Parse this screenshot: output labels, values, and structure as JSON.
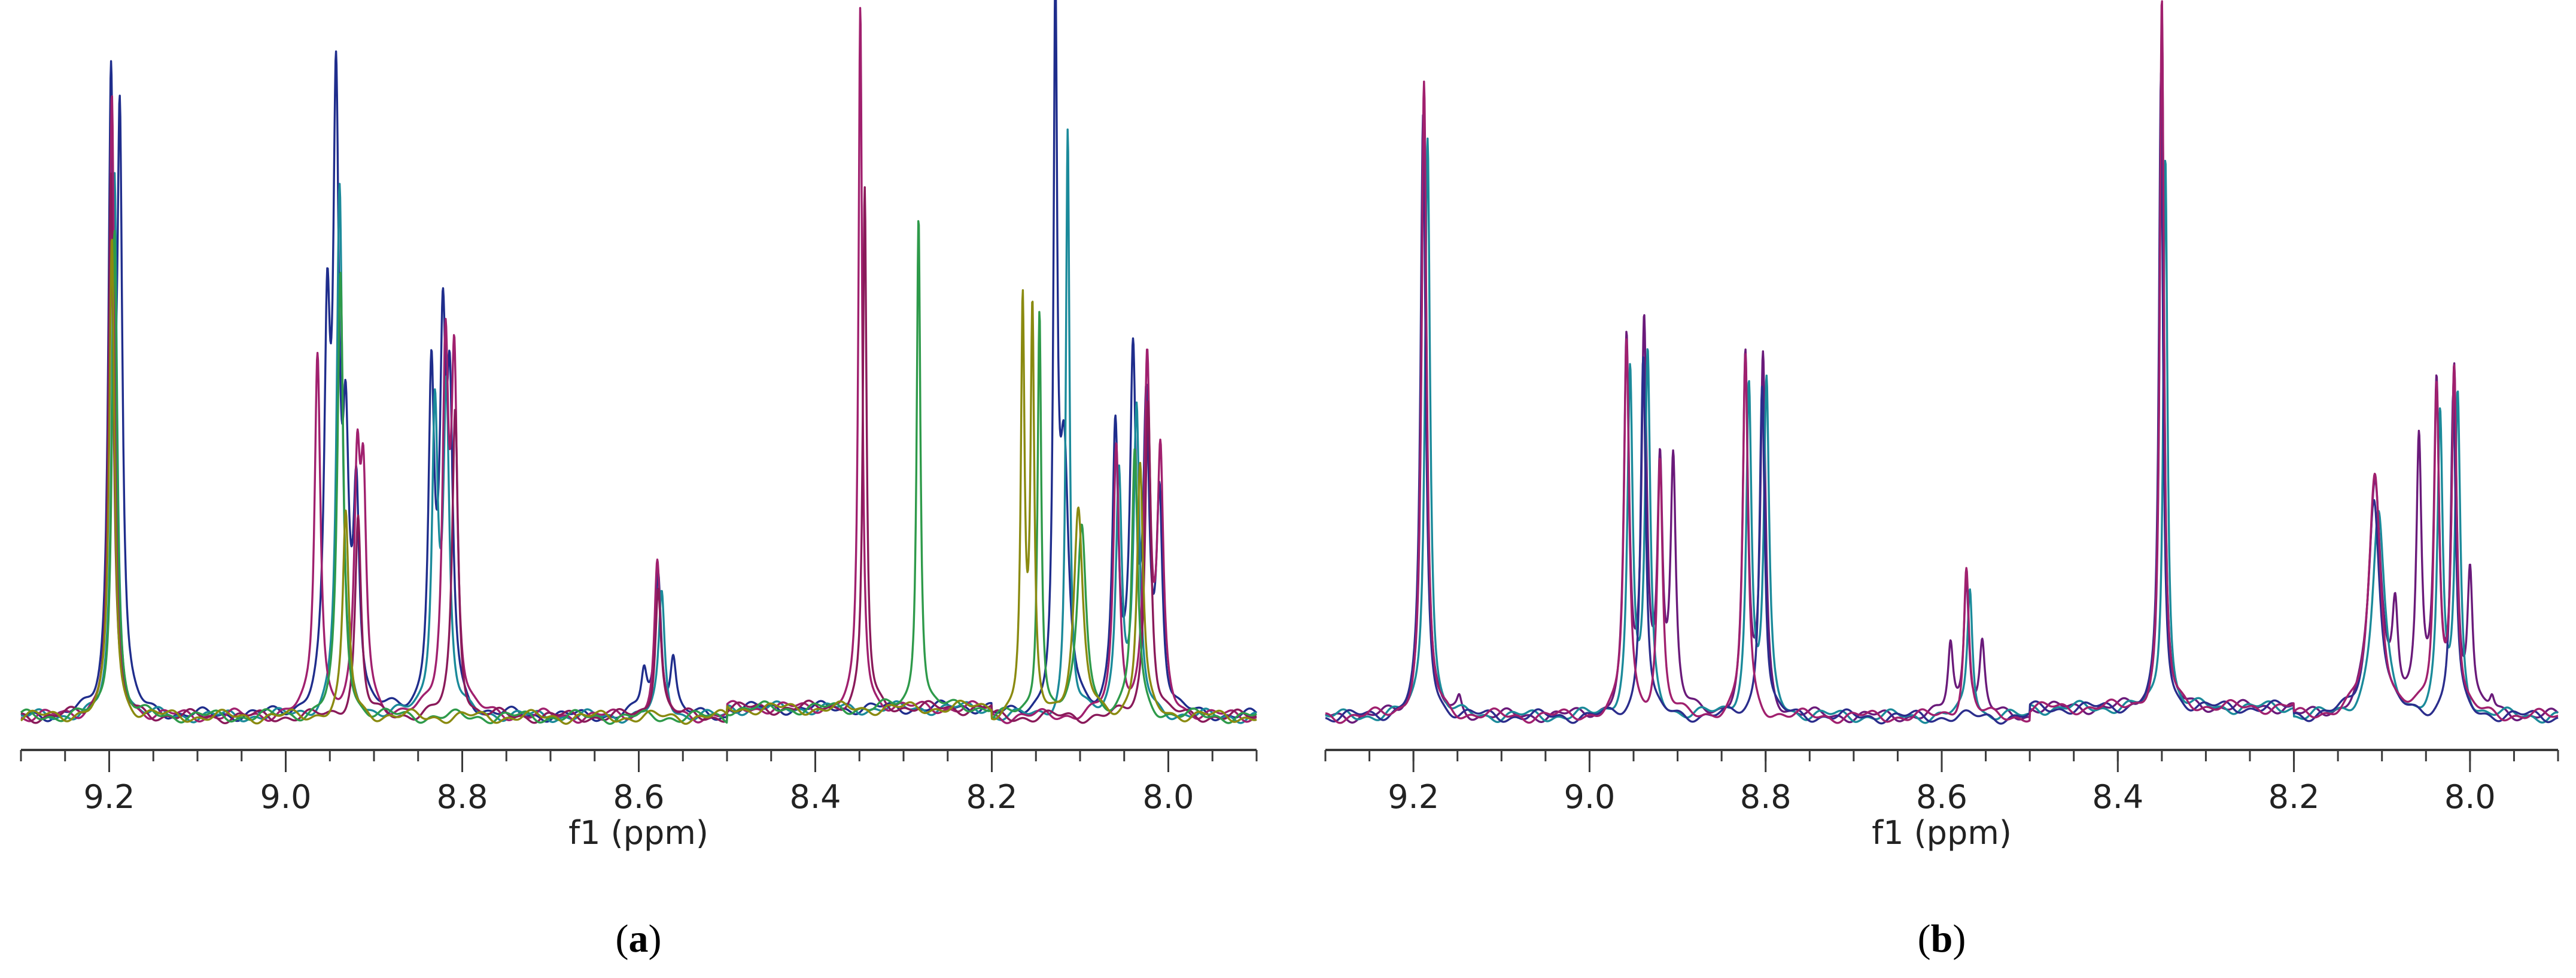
{
  "chart_data": [
    {
      "type": "line",
      "panel_label": "a",
      "xlabel": "f1 (ppm)",
      "xlim": [
        9.3,
        7.9
      ],
      "x_reversed": true,
      "x_ticks": [
        "9.2",
        "9.0",
        "8.8",
        "8.6",
        "8.4",
        "8.2",
        "8.0"
      ],
      "x_tick_values": [
        9.2,
        9.0,
        8.8,
        8.6,
        8.4,
        8.2,
        8.0
      ],
      "ylim": [
        0,
        1.0
      ],
      "y_axis_shown": false,
      "series": [
        {
          "color": "#1f2d8c",
          "shift": 0.0,
          "s": 1.0,
          "peaks": [
            [
              9.198,
              0.85,
              0.0035
            ],
            [
              9.188,
              0.8,
              0.0035
            ],
            [
              8.953,
              0.5,
              0.004
            ],
            [
              8.943,
              0.83,
              0.004
            ],
            [
              8.932,
              0.33,
              0.004
            ],
            [
              8.92,
              0.3,
              0.004
            ],
            [
              8.835,
              0.47,
              0.004
            ],
            [
              8.822,
              0.48,
              0.004
            ],
            [
              8.814,
              0.4,
              0.004
            ],
            [
              8.594,
              0.06,
              0.004
            ],
            [
              8.578,
              0.2,
              0.004
            ],
            [
              8.561,
              0.08,
              0.004
            ],
            [
              8.128,
              0.98,
              0.0025
            ],
            [
              8.118,
              0.35,
              0.006
            ],
            [
              8.06,
              0.4,
              0.004
            ],
            [
              8.04,
              0.48,
              0.004
            ],
            [
              8.025,
              0.42,
              0.004
            ],
            [
              8.01,
              0.3,
              0.004
            ]
          ]
        },
        {
          "color": "#1b8a9a",
          "shift": -0.004,
          "s": 0.97,
          "peaks": [
            [
              9.198,
              0.8,
              0.0035
            ],
            [
              8.943,
              0.78,
              0.004
            ],
            [
              8.835,
              0.45,
              0.004
            ],
            [
              8.822,
              0.46,
              0.004
            ],
            [
              8.578,
              0.18,
              0.004
            ],
            [
              8.118,
              0.86,
              0.0025
            ],
            [
              8.06,
              0.36,
              0.004
            ],
            [
              8.04,
              0.44,
              0.004
            ]
          ]
        },
        {
          "color": "#a0206e",
          "shift": 0.004,
          "s": 1.0,
          "peaks": [
            [
              9.193,
              0.88,
              0.0035
            ],
            [
              8.96,
              0.52,
              0.004
            ],
            [
              8.915,
              0.32,
              0.004
            ],
            [
              8.908,
              0.3,
              0.004
            ],
            [
              8.815,
              0.5,
              0.004
            ],
            [
              8.805,
              0.48,
              0.004
            ],
            [
              8.575,
              0.22,
              0.004
            ],
            [
              8.345,
              1.0,
              0.0025
            ],
            [
              8.055,
              0.38,
              0.004
            ],
            [
              8.02,
              0.5,
              0.004
            ],
            [
              8.005,
              0.35,
              0.004
            ]
          ]
        },
        {
          "color": "#8a1a5a",
          "shift": 0.008,
          "s": 0.95,
          "peaks": [
            [
              9.19,
              0.82,
              0.0035
            ],
            [
              8.91,
              0.3,
              0.004
            ],
            [
              8.8,
              0.46,
              0.004
            ],
            [
              8.57,
              0.2,
              0.004
            ],
            [
              8.336,
              0.78,
              0.0025
            ],
            [
              8.015,
              0.48,
              0.004
            ]
          ]
        },
        {
          "color": "#2e9a4a",
          "shift": -0.002,
          "s": 0.9,
          "peaks": [
            [
              9.196,
              0.78,
              0.0035
            ],
            [
              8.94,
              0.7,
              0.004
            ],
            [
              8.285,
              0.79,
              0.0025
            ],
            [
              8.148,
              0.65,
              0.0025
            ],
            [
              8.1,
              0.3,
              0.006
            ],
            [
              8.04,
              0.42,
              0.004
            ]
          ]
        },
        {
          "color": "#8a8a10",
          "shift": 0.002,
          "s": 0.9,
          "peaks": [
            [
              9.195,
              0.76,
              0.0035
            ],
            [
              8.93,
              0.32,
              0.004
            ],
            [
              8.163,
              0.64,
              0.0025
            ],
            [
              8.152,
              0.62,
              0.0025
            ],
            [
              8.1,
              0.32,
              0.006
            ],
            [
              8.03,
              0.4,
              0.004
            ]
          ]
        }
      ]
    },
    {
      "type": "line",
      "panel_label": "b",
      "xlabel": "f1 (ppm)",
      "xlim": [
        9.3,
        7.9
      ],
      "x_reversed": true,
      "x_ticks": [
        "9.2",
        "9.0",
        "8.8",
        "8.6",
        "8.4",
        "8.2",
        "8.0"
      ],
      "x_tick_values": [
        9.2,
        9.0,
        8.8,
        8.6,
        8.4,
        8.2,
        8.0
      ],
      "ylim": [
        0,
        1.0
      ],
      "y_axis_shown": false,
      "series": [
        {
          "color": "#6a1a7a",
          "shift": 0.0,
          "s": 1.0,
          "peaks": [
            [
              9.188,
              0.88,
              0.0035
            ],
            [
              9.148,
              0.02,
              0.003
            ],
            [
              8.958,
              0.52,
              0.0035
            ],
            [
              8.938,
              0.54,
              0.0035
            ],
            [
              8.92,
              0.35,
              0.0035
            ],
            [
              8.905,
              0.35,
              0.0035
            ],
            [
              8.823,
              0.5,
              0.0035
            ],
            [
              8.803,
              0.5,
              0.0035
            ],
            [
              8.59,
              0.1,
              0.0035
            ],
            [
              8.572,
              0.2,
              0.0035
            ],
            [
              8.554,
              0.1,
              0.0035
            ],
            [
              8.35,
              1.0,
              0.0028
            ],
            [
              8.108,
              0.33,
              0.008
            ],
            [
              8.085,
              0.14,
              0.004
            ],
            [
              8.058,
              0.38,
              0.0035
            ],
            [
              8.038,
              0.45,
              0.0035
            ],
            [
              8.018,
              0.48,
              0.0035
            ],
            [
              8.0,
              0.2,
              0.0035
            ],
            [
              7.975,
              0.02,
              0.003
            ]
          ]
        },
        {
          "color": "#1b8a9a",
          "shift": -0.004,
          "s": 0.97,
          "peaks": [
            [
              9.188,
              0.86,
              0.0035
            ],
            [
              8.958,
              0.5,
              0.0035
            ],
            [
              8.938,
              0.52,
              0.0035
            ],
            [
              8.823,
              0.48,
              0.0035
            ],
            [
              8.803,
              0.48,
              0.0035
            ],
            [
              8.572,
              0.19,
              0.0035
            ],
            [
              8.35,
              0.82,
              0.0028
            ],
            [
              8.108,
              0.3,
              0.008
            ],
            [
              8.038,
              0.43,
              0.0035
            ],
            [
              8.018,
              0.46,
              0.0035
            ]
          ]
        },
        {
          "color": "#2b2d8c",
          "shift": 0.001,
          "s": 0.98,
          "peaks": [
            [
              9.188,
              0.87,
              0.0035
            ],
            [
              8.938,
              0.53,
              0.0035
            ],
            [
              8.803,
              0.49,
              0.0035
            ],
            [
              8.35,
              0.92,
              0.0028
            ],
            [
              8.108,
              0.32,
              0.008
            ],
            [
              8.018,
              0.47,
              0.0035
            ]
          ]
        },
        {
          "color": "#a0206e",
          "shift": 0.0,
          "s": 1.01,
          "peaks": [
            [
              9.188,
              0.89,
              0.0035
            ],
            [
              8.958,
              0.53,
              0.0035
            ],
            [
              8.92,
              0.36,
              0.0035
            ],
            [
              8.823,
              0.51,
              0.0035
            ],
            [
              8.572,
              0.21,
              0.0035
            ],
            [
              8.35,
              1.0,
              0.0028
            ],
            [
              8.108,
              0.34,
              0.008
            ],
            [
              8.038,
              0.46,
              0.0035
            ],
            [
              8.018,
              0.49,
              0.0035
            ]
          ]
        }
      ]
    }
  ],
  "colors": {
    "axis": "#3a3a3a",
    "text": "#222222",
    "background": "#ffffff"
  }
}
